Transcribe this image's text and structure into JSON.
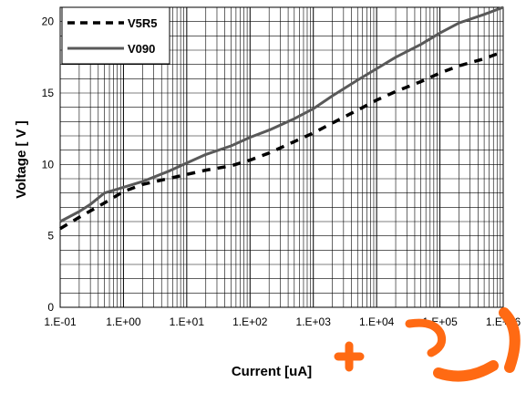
{
  "chart_data": {
    "type": "line",
    "xlabel": "Current [uA]",
    "ylabel": "Voltage [ V ]",
    "x_scale": "log",
    "xlim": [
      0.1,
      1000000
    ],
    "ylim": [
      0,
      21
    ],
    "x_ticks": [
      "1.E-01",
      "1.E+00",
      "1.E+01",
      "1.E+02",
      "1.E+03",
      "1.E+04",
      "1.E+05",
      "1.E+06"
    ],
    "y_ticks": [
      "0",
      "5",
      "10",
      "15",
      "20"
    ],
    "grid": true,
    "legend_position": "top-left",
    "series": [
      {
        "name": "V5R5",
        "style": "dashed",
        "color": "#000000",
        "x": [
          0.1,
          0.2,
          0.5,
          1,
          2,
          5,
          10,
          20,
          50,
          100,
          200,
          500,
          1000,
          2000,
          5000,
          10000,
          20000,
          50000,
          100000,
          200000,
          500000,
          1000000
        ],
        "y": [
          5.5,
          6.3,
          7.3,
          8.1,
          8.6,
          9.0,
          9.3,
          9.6,
          9.9,
          10.3,
          10.8,
          11.6,
          12.2,
          12.9,
          13.8,
          14.5,
          15.1,
          15.8,
          16.4,
          16.9,
          17.4,
          17.9
        ]
      },
      {
        "name": "V090",
        "style": "solid",
        "color": "#595959",
        "x": [
          0.1,
          0.2,
          0.3,
          0.5,
          1,
          2,
          5,
          10,
          20,
          50,
          100,
          200,
          500,
          1000,
          2000,
          5000,
          10000,
          20000,
          50000,
          100000,
          200000,
          500000,
          1000000
        ],
        "y": [
          6.0,
          6.7,
          7.2,
          8.0,
          8.4,
          8.8,
          9.5,
          10.1,
          10.7,
          11.3,
          11.9,
          12.4,
          13.2,
          13.9,
          14.8,
          15.9,
          16.7,
          17.5,
          18.4,
          19.2,
          19.9,
          20.5,
          21.0
        ]
      }
    ]
  },
  "watermark": {
    "color": "#ff6a13",
    "icon": "orange-logo-watermark"
  }
}
